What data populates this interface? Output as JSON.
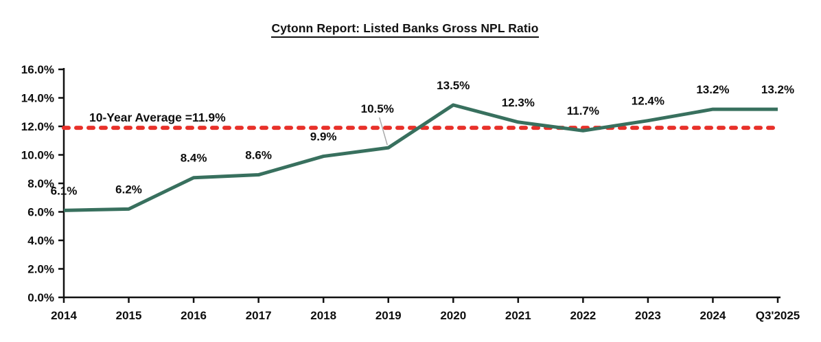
{
  "chart": {
    "title": "Cytonn Report: Listed Banks Gross NPL Ratio"
  },
  "chart_data": {
    "type": "line",
    "title": "Cytonn Report: Listed Banks Gross NPL Ratio",
    "categories": [
      "2014",
      "2015",
      "2016",
      "2017",
      "2018",
      "2019",
      "2020",
      "2021",
      "2022",
      "2023",
      "2024",
      "Q3'2025"
    ],
    "series": [
      {
        "name": "Listed Banks Gross NPL Ratio",
        "values": [
          6.1,
          6.2,
          8.4,
          8.6,
          9.9,
          10.5,
          13.5,
          12.3,
          11.7,
          12.4,
          13.2,
          13.2
        ],
        "color": "#38705E"
      }
    ],
    "data_labels": [
      "6.1%",
      "6.2%",
      "8.4%",
      "8.6%",
      "9.9%",
      "10.5%",
      "13.5%",
      "12.3%",
      "11.7%",
      "12.4%",
      "13.2%",
      "13.2%"
    ],
    "callout": {
      "category": "2019",
      "label": "10.5%",
      "leader_color": "#a6a6a6"
    },
    "average_line": {
      "value": 11.9,
      "label": "10-Year Average =11.9%",
      "color": "#E8312A",
      "style": "dashed"
    },
    "y_axis": {
      "min": 0,
      "max": 16,
      "step": 2,
      "tick_labels": [
        "0.0%",
        "2.0%",
        "4.0%",
        "6.0%",
        "8.0%",
        "10.0%",
        "12.0%",
        "14.0%",
        "16.0%"
      ]
    },
    "x_axis": {
      "tick_labels": [
        "2014",
        "2015",
        "2016",
        "2017",
        "2018",
        "2019",
        "2020",
        "2021",
        "2022",
        "2023",
        "2024",
        "Q3'2025"
      ]
    },
    "grid": false,
    "legend": "none",
    "axis_color": "#111111",
    "text_color": "#0d0d0d",
    "ylim": [
      0,
      16
    ]
  }
}
